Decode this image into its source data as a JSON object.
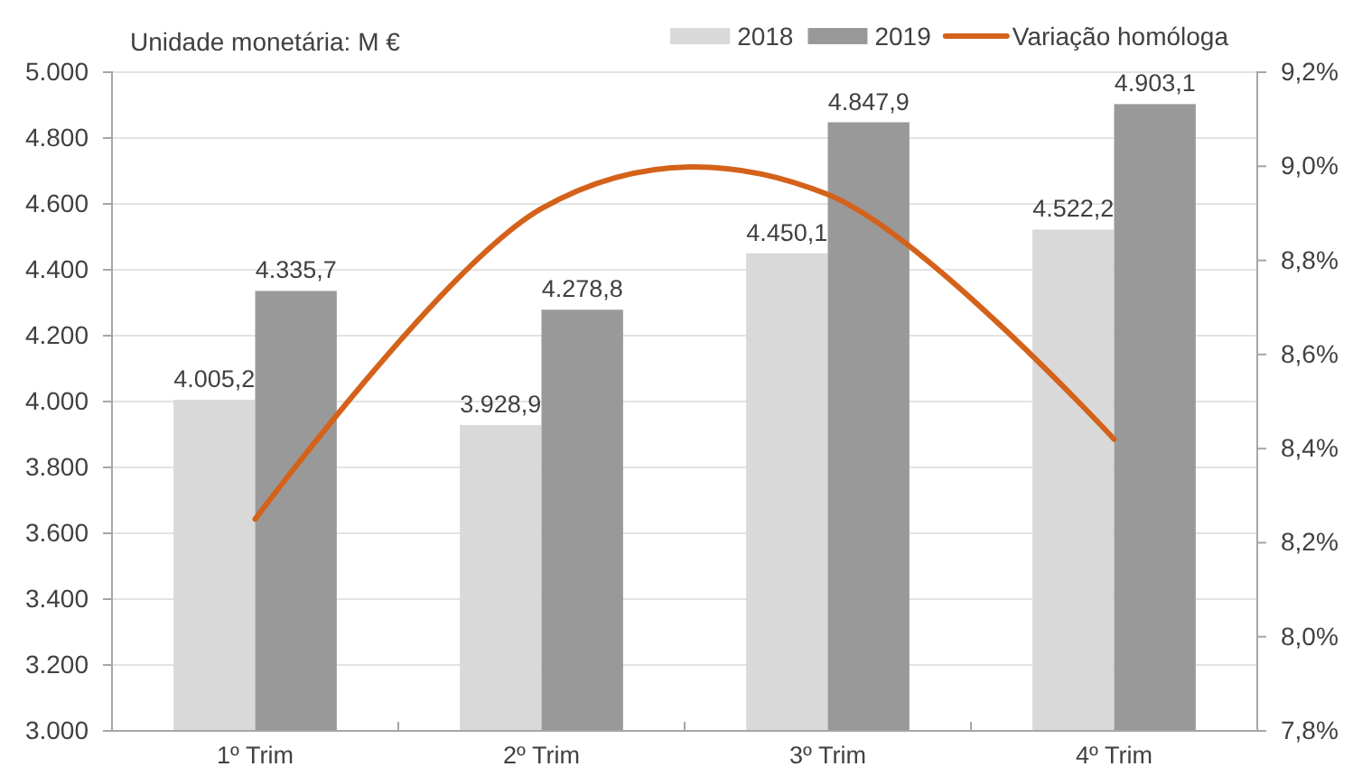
{
  "chart_data": {
    "type": "bar",
    "annotations": [
      "Unidade monetária: M €"
    ],
    "categories": [
      "1º Trim",
      "2º Trim",
      "3º Trim",
      "4º Trim"
    ],
    "series": [
      {
        "name": "2018",
        "color": "#d9d9d9",
        "values": [
          4005.2,
          3928.9,
          4450.1,
          4522.2
        ],
        "value_labels": [
          "4.005,2",
          "3.928,9",
          "4.450,1",
          "4.522,2"
        ]
      },
      {
        "name": "2019",
        "color": "#999999",
        "values": [
          4335.7,
          4278.8,
          4847.9,
          4903.1
        ],
        "value_labels": [
          "4.335,7",
          "4.278,8",
          "4.847,9",
          "4.903,1"
        ]
      },
      {
        "name": "Variação homóloga",
        "type": "line",
        "axis": "y2",
        "color": "#d4621a",
        "values": [
          8.25,
          8.91,
          8.94,
          8.42
        ]
      }
    ],
    "ylim": [
      3000,
      5000
    ],
    "yticks": [
      {
        "value": 3000,
        "label": "3.000"
      },
      {
        "value": 3200,
        "label": "3.200"
      },
      {
        "value": 3400,
        "label": "3.400"
      },
      {
        "value": 3600,
        "label": "3.600"
      },
      {
        "value": 3800,
        "label": "3.800"
      },
      {
        "value": 4000,
        "label": "4.000"
      },
      {
        "value": 4200,
        "label": "4.200"
      },
      {
        "value": 4400,
        "label": "4.400"
      },
      {
        "value": 4600,
        "label": "4.600"
      },
      {
        "value": 4800,
        "label": "4.800"
      },
      {
        "value": 5000,
        "label": "5.000"
      }
    ],
    "y2lim": [
      7.8,
      9.2
    ],
    "y2ticks": [
      {
        "value": 7.8,
        "label": "7,8%"
      },
      {
        "value": 8.0,
        "label": "8,0%"
      },
      {
        "value": 8.2,
        "label": "8,2%"
      },
      {
        "value": 8.4,
        "label": "8,4%"
      },
      {
        "value": 8.6,
        "label": "8,6%"
      },
      {
        "value": 8.8,
        "label": "8,8%"
      },
      {
        "value": 9.0,
        "label": "9,0%"
      },
      {
        "value": 9.2,
        "label": "9,2%"
      }
    ],
    "grid": "y",
    "legend": "top right"
  }
}
